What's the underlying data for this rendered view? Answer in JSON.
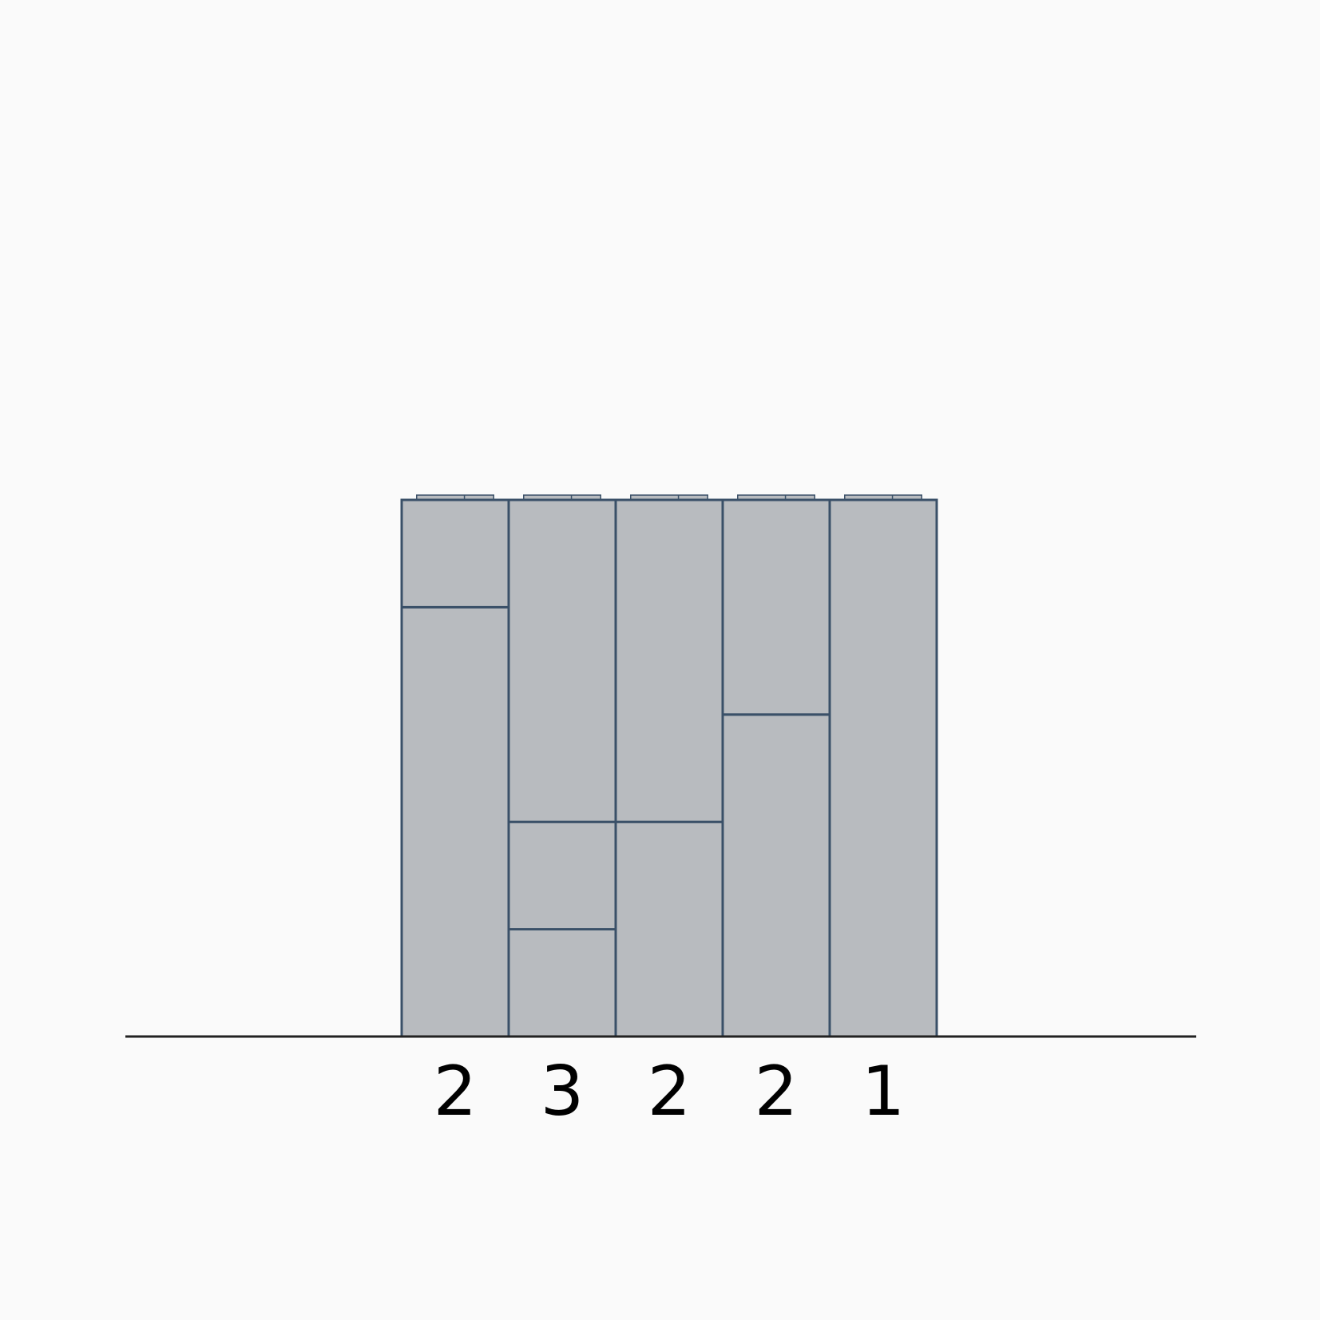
{
  "columns": [
    {
      "count_label": "2",
      "brick_heights": [
        4,
        1
      ]
    },
    {
      "count_label": "3",
      "brick_heights": [
        1,
        1,
        3
      ]
    },
    {
      "count_label": "2",
      "brick_heights": [
        2,
        3
      ]
    },
    {
      "count_label": "2",
      "brick_heights": [
        3,
        2
      ]
    },
    {
      "count_label": "1",
      "brick_heights": [
        5
      ]
    }
  ],
  "colors": {
    "background": "#fafafa",
    "brick_fill": "#b8bbbf",
    "brick_stroke": "#3a5068",
    "stud_dark": "#2f4a55",
    "baseline": "#222222"
  }
}
